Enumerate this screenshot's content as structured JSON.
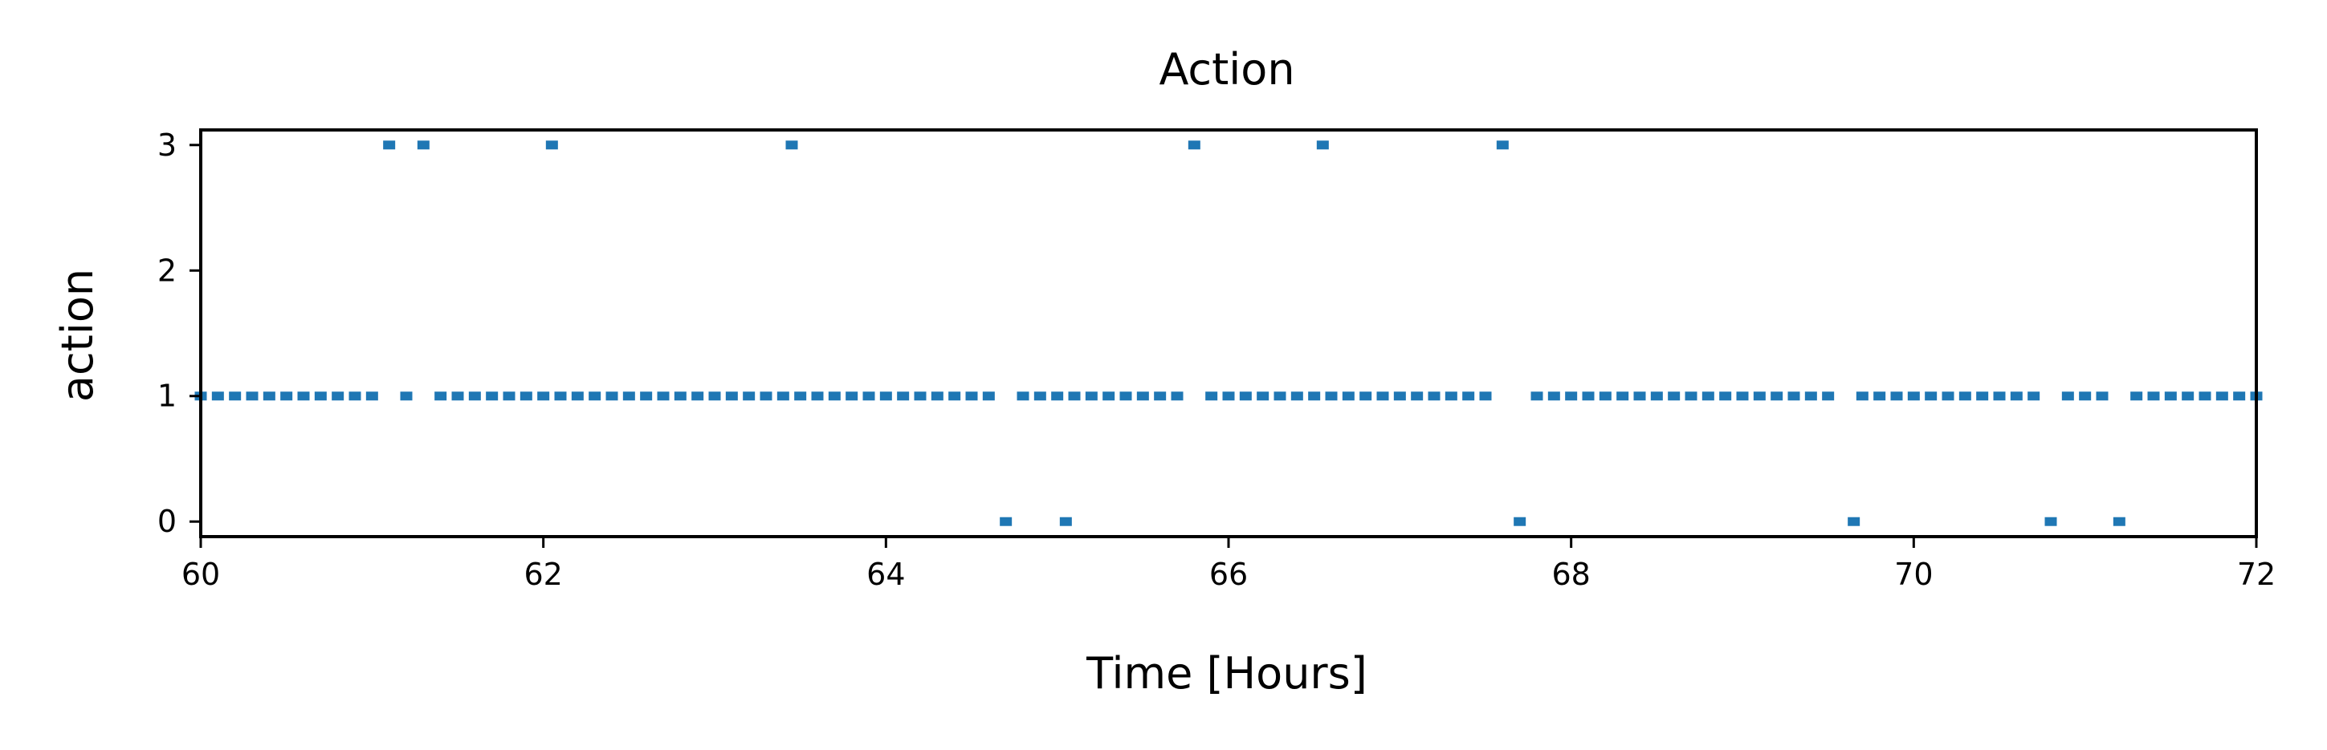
{
  "chart_data": {
    "type": "scatter",
    "title": "Action",
    "xlabel": "Time [Hours]",
    "ylabel": "action",
    "xlim": [
      60,
      72
    ],
    "ylim": [
      -0.12,
      3.12
    ],
    "xticks": [
      60,
      62,
      64,
      66,
      68,
      70,
      72
    ],
    "yticks": [
      0,
      1,
      2,
      3
    ],
    "grid": false,
    "marker": "square",
    "color": "#1f77b4",
    "series": [
      {
        "step_hours": 0.1,
        "segments_action_1": [
          [
            60.0,
            61.0
          ],
          [
            61.2,
            61.2
          ],
          [
            61.4,
            62.0
          ],
          [
            62.1,
            63.4
          ],
          [
            63.5,
            64.6
          ],
          [
            64.8,
            65.0
          ],
          [
            65.1,
            65.7
          ],
          [
            65.9,
            66.5
          ],
          [
            66.6,
            67.5
          ],
          [
            67.8,
            69.5
          ],
          [
            69.7,
            70.7
          ],
          [
            70.9,
            71.1
          ],
          [
            71.3,
            72.0
          ]
        ],
        "points_action_3": [
          61.1,
          61.3,
          62.05,
          63.45,
          65.8,
          66.55,
          67.6
        ],
        "points_action_0": [
          64.7,
          65.05,
          67.7,
          69.65,
          70.8,
          71.2
        ]
      }
    ]
  }
}
